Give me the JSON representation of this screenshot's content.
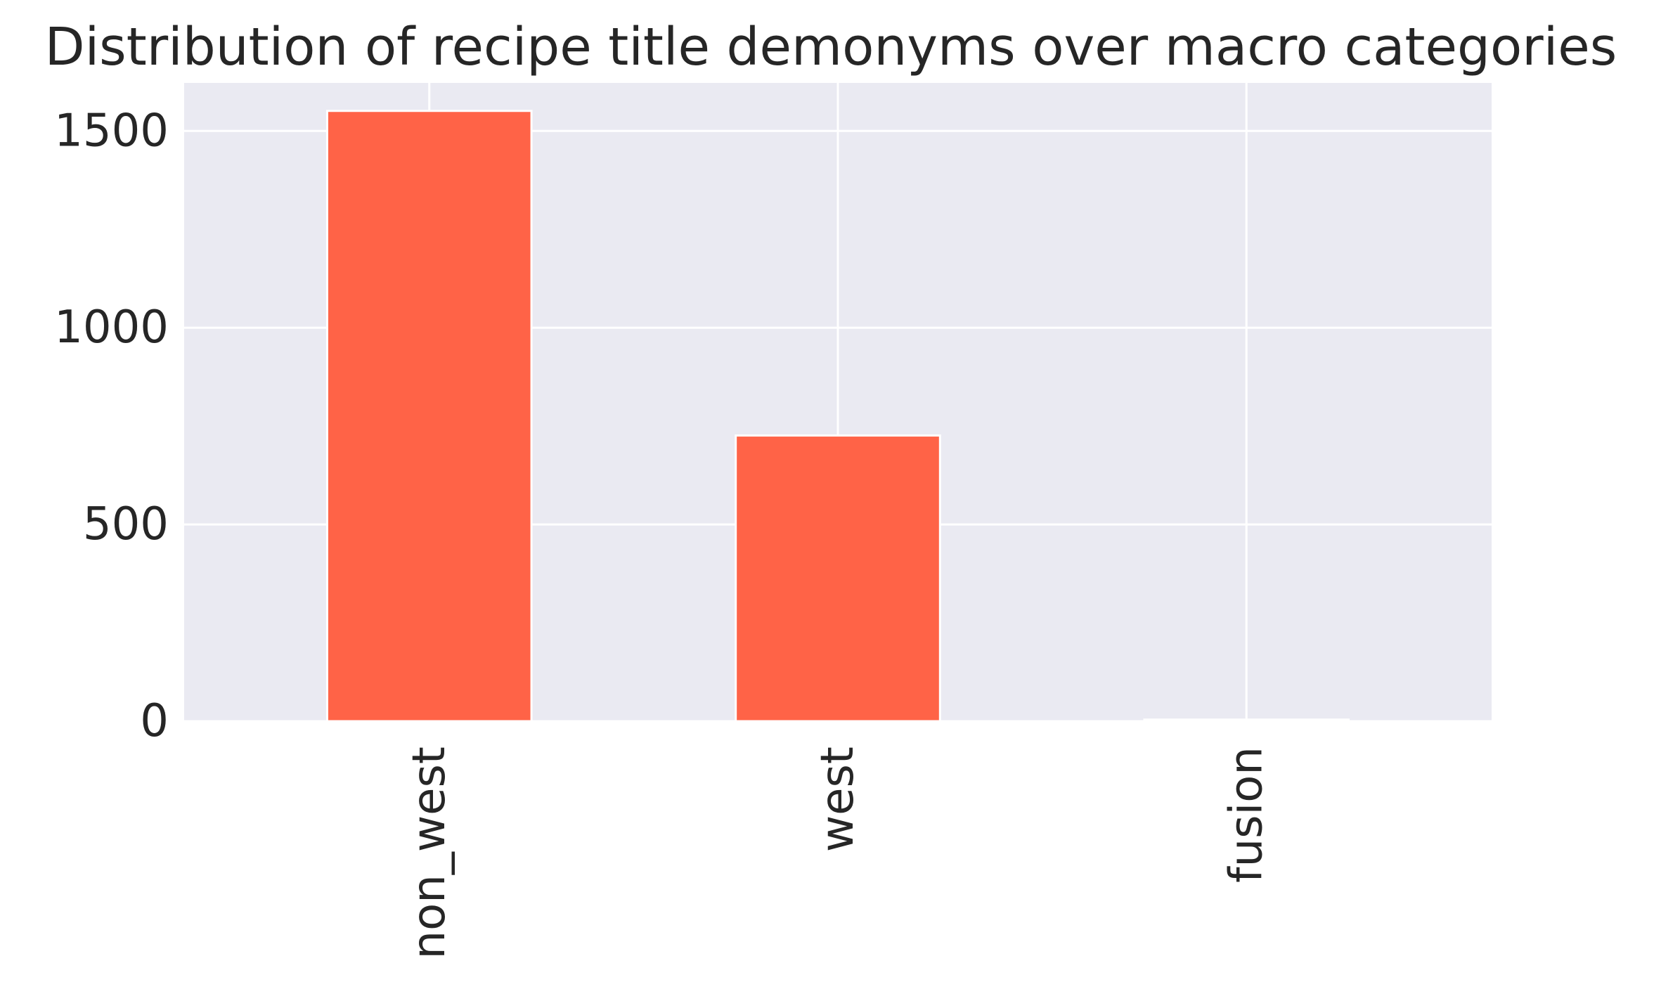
{
  "chart_data": {
    "type": "bar",
    "title": "Distribution of recipe title demonyms over macro categories",
    "xlabel": "",
    "ylabel": "",
    "categories": [
      "non_west",
      "west",
      "fusion"
    ],
    "values": [
      1551,
      726,
      4
    ],
    "ylim": [
      0,
      1622
    ],
    "yticks": [
      0,
      500,
      1000,
      1500
    ],
    "ytick_labels": [
      "0",
      "500",
      "1000",
      "1500"
    ],
    "grid": true,
    "x_tick_rotation": 90,
    "colors": {
      "bar": "#ff6347",
      "plot_background": "#eaeaf2",
      "grid": "#ffffff",
      "text": "#262626"
    }
  }
}
